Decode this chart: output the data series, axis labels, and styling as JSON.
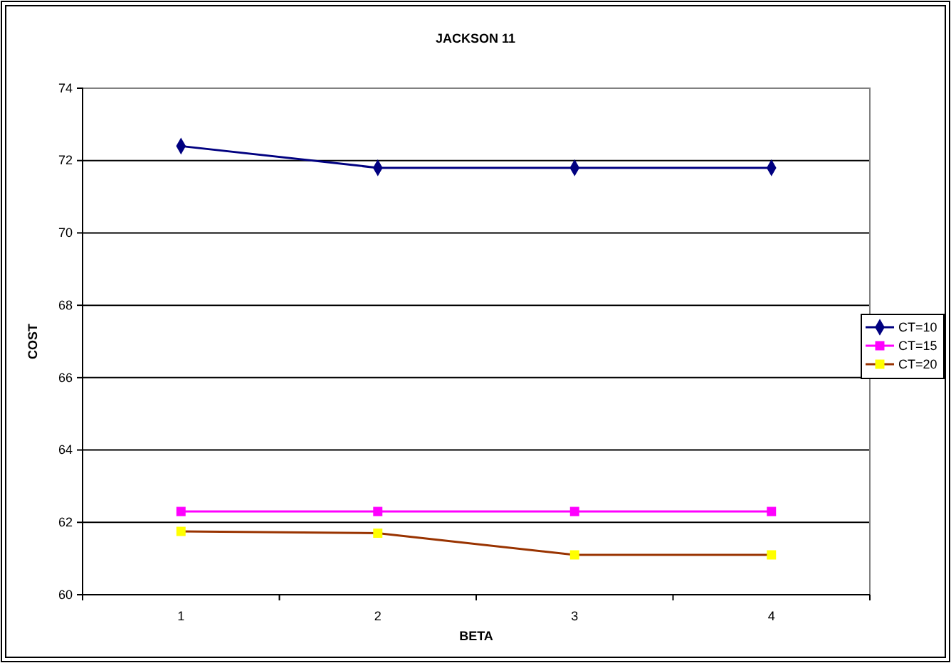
{
  "chart_data": {
    "type": "line",
    "title": "JACKSON 11",
    "xlabel": "BETA",
    "ylabel": "COST",
    "categories": [
      "1",
      "2",
      "3",
      "4"
    ],
    "series": [
      {
        "name": "CT=10",
        "color": "#000080",
        "marker": "diamond",
        "values": [
          72.4,
          71.8,
          71.8,
          71.8
        ]
      },
      {
        "name": "CT=15",
        "color": "#ff00ff",
        "marker": "square",
        "values": [
          62.3,
          62.3,
          62.3,
          62.3
        ]
      },
      {
        "name": "CT=20",
        "color": "#993300",
        "colors": [
          "#ffff00",
          "#ffff00",
          "#ffff00",
          "#ffff00"
        ],
        "marker": "square",
        "values": [
          61.75,
          61.7,
          61.1,
          61.1
        ]
      }
    ],
    "ylim": [
      60,
      74
    ],
    "yticks": [
      60,
      62,
      64,
      66,
      68,
      70,
      72,
      74
    ],
    "grid": "y",
    "legend": "right"
  }
}
